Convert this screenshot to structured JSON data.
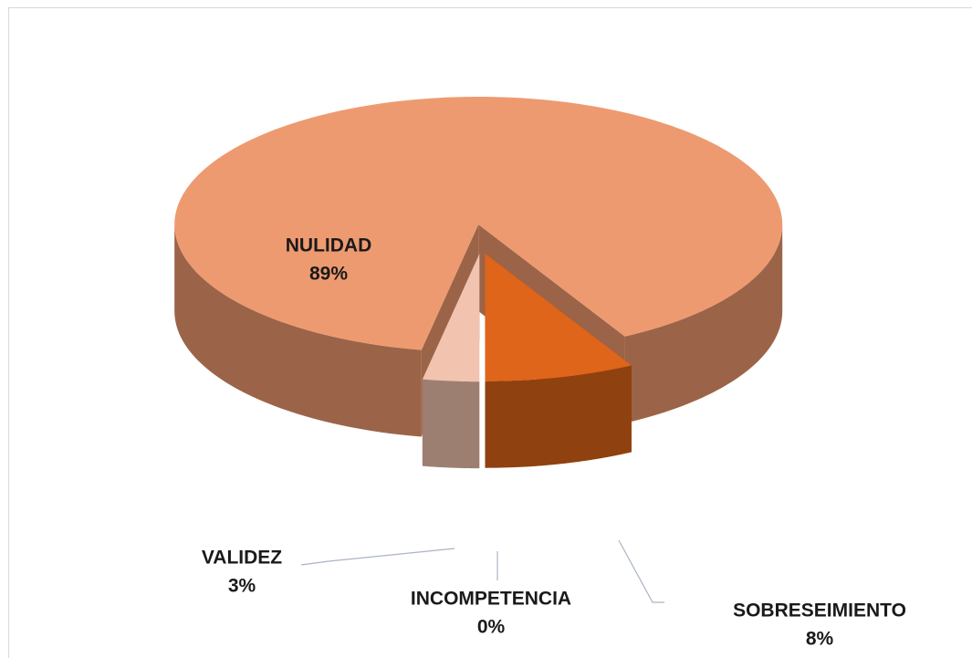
{
  "chart_data": {
    "type": "pie",
    "categories": [
      "NULIDAD",
      "SOBRESEIMIENTO",
      "INCOMPETENCIA",
      "VALIDEZ"
    ],
    "values": [
      89,
      8,
      0,
      3
    ],
    "value_labels": [
      "89%",
      "8%",
      "0%",
      "3%"
    ],
    "colors": [
      "#ee9a70",
      "#de6519",
      "#b8501c",
      "#f2c3af"
    ]
  }
}
